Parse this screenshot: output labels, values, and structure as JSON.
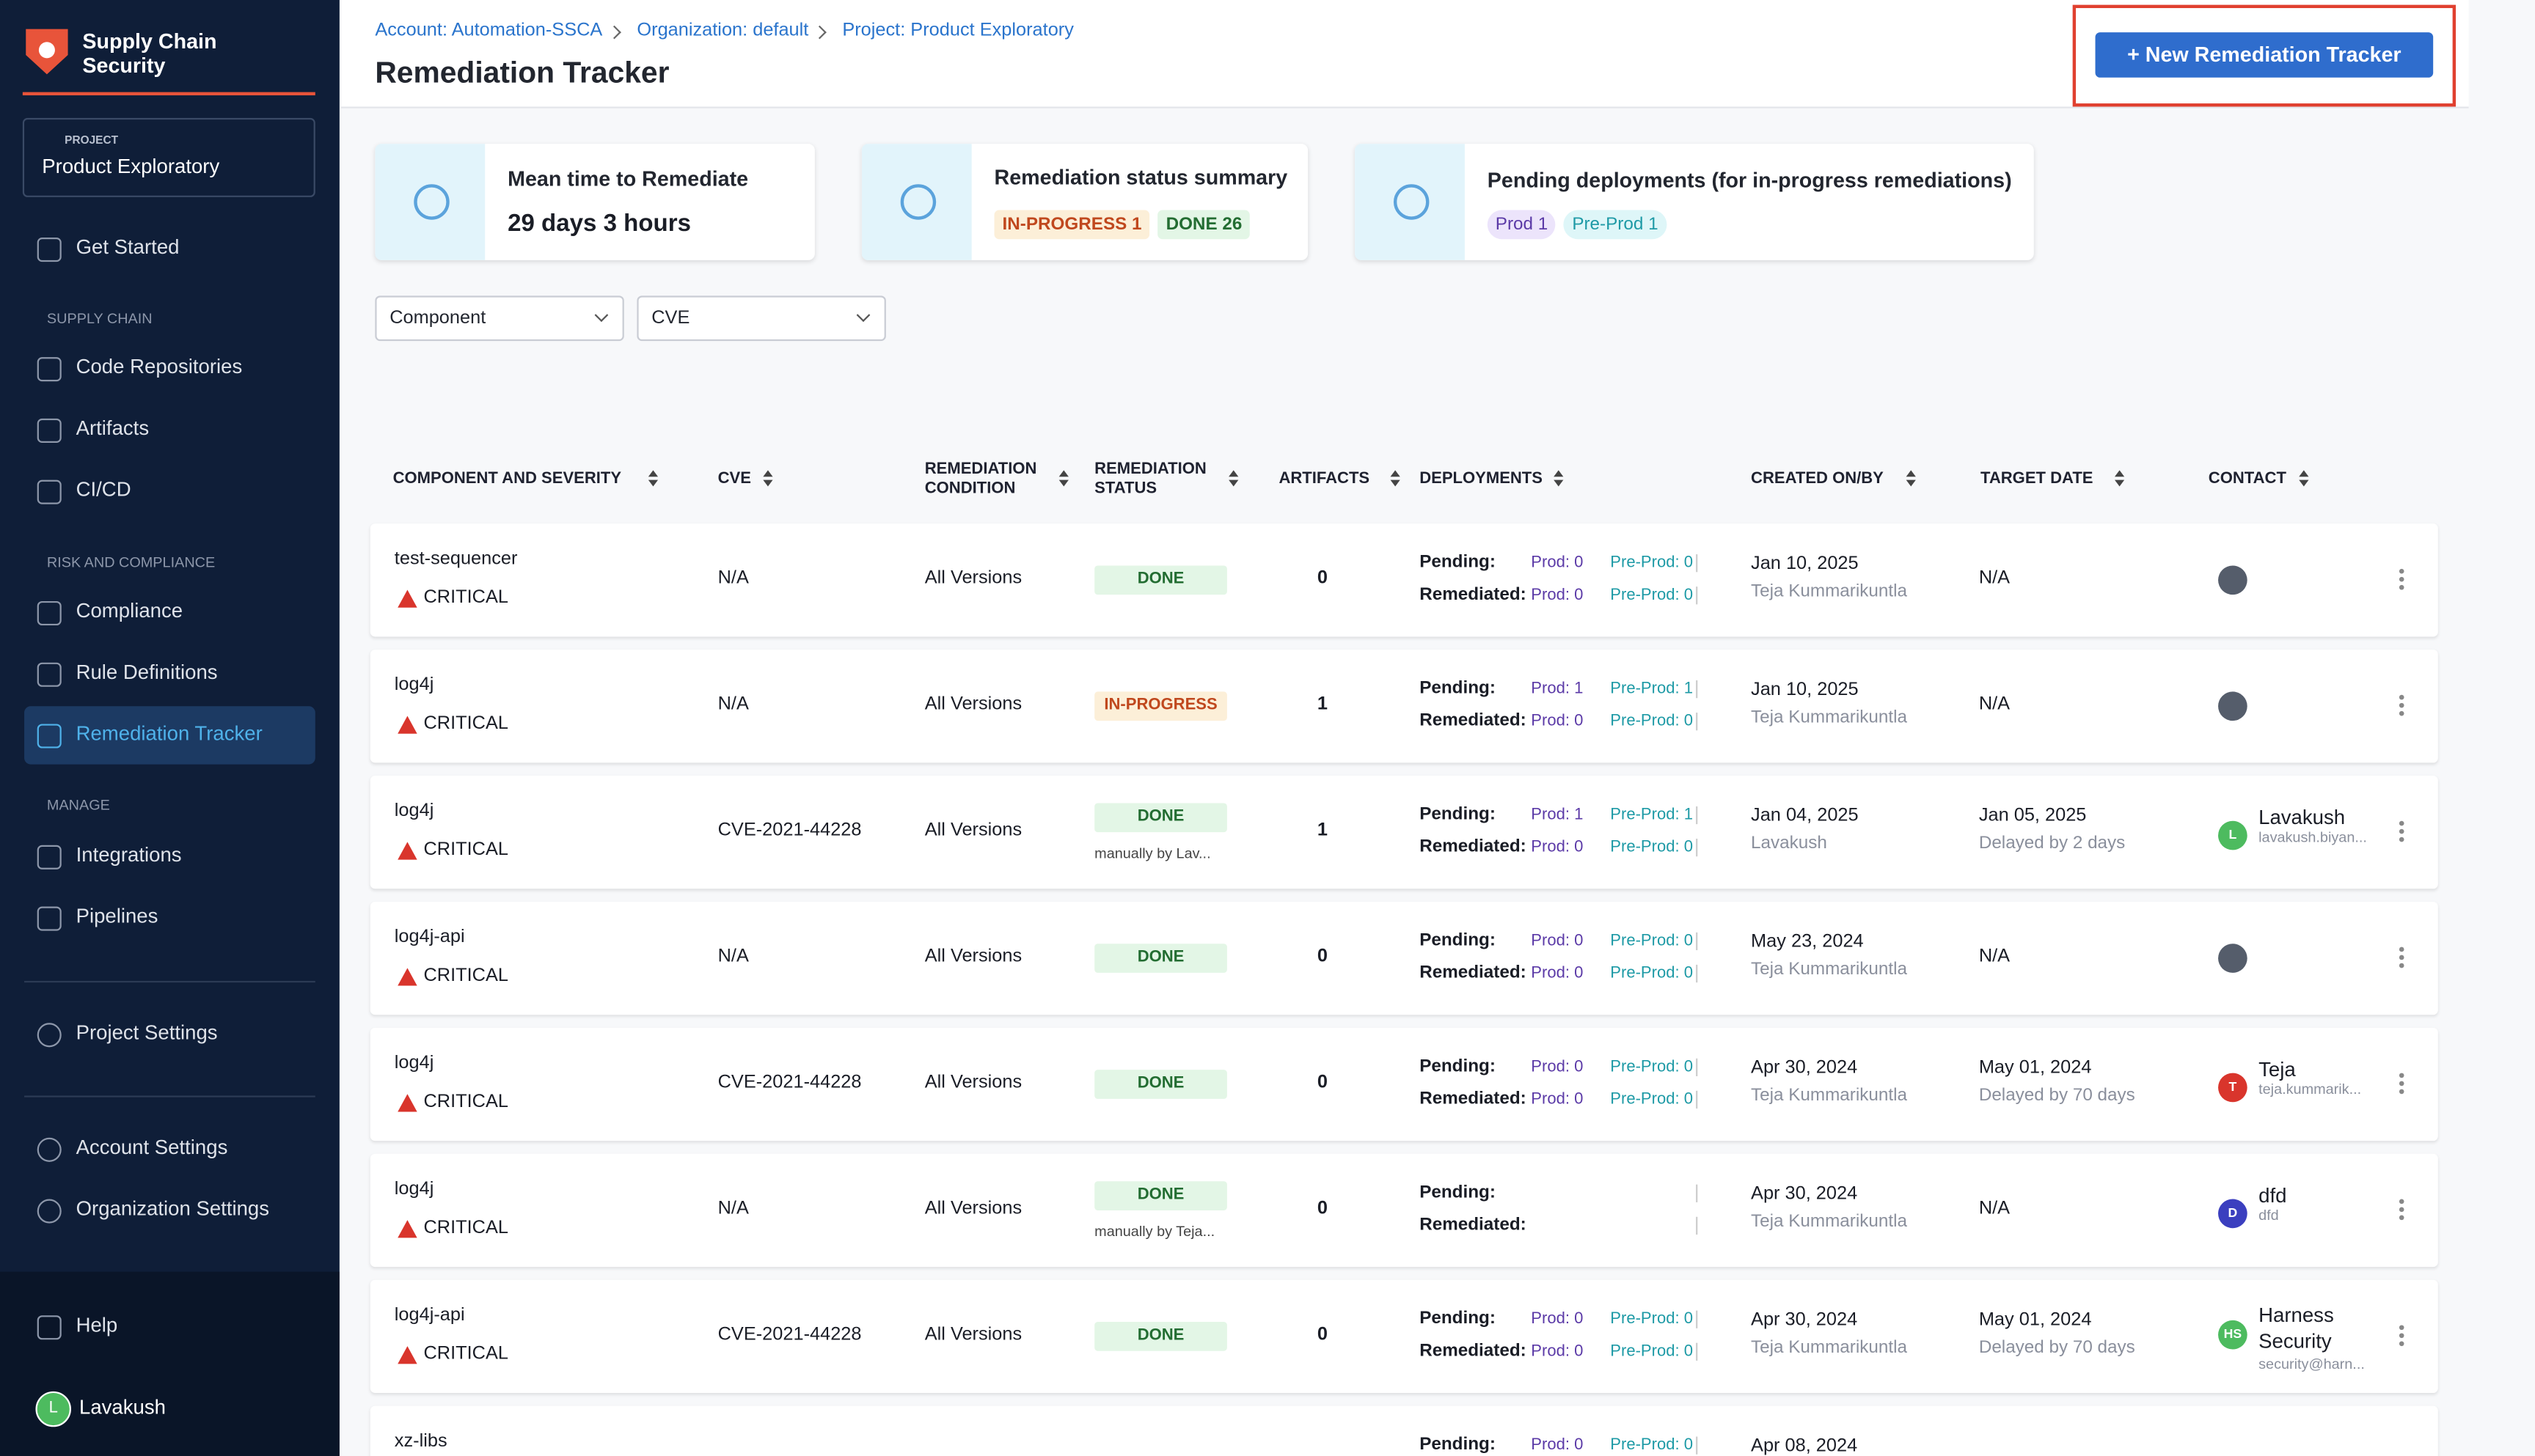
{
  "sidebar": {
    "module": "Supply Chain Security",
    "project_label": "PROJECT",
    "project": "Product Exploratory",
    "groups": [
      {
        "items": [
          {
            "label": "Get Started"
          }
        ]
      },
      {
        "title": "SUPPLY CHAIN",
        "items": [
          {
            "label": "Code Repositories"
          },
          {
            "label": "Artifacts"
          },
          {
            "label": "CI/CD"
          }
        ]
      },
      {
        "title": "RISK AND COMPLIANCE",
        "items": [
          {
            "label": "Compliance"
          },
          {
            "label": "Rule Definitions"
          },
          {
            "label": "Remediation Tracker",
            "active": true
          }
        ]
      },
      {
        "title": "MANAGE",
        "items": [
          {
            "label": "Integrations"
          },
          {
            "label": "Pipelines"
          }
        ]
      }
    ],
    "settings": [
      "Project Settings",
      "Account Settings",
      "Organization Settings"
    ],
    "help": "Help",
    "user": {
      "initial": "L",
      "name": "Lavakush"
    }
  },
  "header": {
    "breadcrumbs": [
      "Account: Automation-SSCA",
      "Organization: default",
      "Project: Product Exploratory"
    ],
    "title": "Remediation Tracker",
    "button": "+ New Remediation Tracker"
  },
  "cards": [
    {
      "title": "Mean time to Remediate",
      "value": "29 days 3 hours"
    },
    {
      "title": "Remediation status summary",
      "badges": [
        {
          "text": "IN-PROGRESS 1",
          "kind": "progress"
        },
        {
          "text": "DONE 26",
          "kind": "done"
        }
      ]
    },
    {
      "title": "Pending deployments (for in-progress remediations)",
      "badges": [
        {
          "text": "Prod 1",
          "kind": "prod"
        },
        {
          "text": "Pre-Prod 1",
          "kind": "preprod"
        }
      ]
    }
  ],
  "filters": [
    "Component",
    "CVE"
  ],
  "table": {
    "columns": [
      "COMPONENT AND SEVERITY",
      "CVE",
      "REMEDIATION CONDITION",
      "REMEDIATION STATUS",
      "ARTIFACTS",
      "DEPLOYMENTS",
      "CREATED ON/BY",
      "TARGET DATE",
      "CONTACT"
    ],
    "labels": {
      "pending": "Pending:",
      "remediated": "Remediated:"
    },
    "rows": [
      {
        "component": "test-sequencer",
        "severity": "CRITICAL",
        "cve": "N/A",
        "condition": "All Versions",
        "status": "DONE",
        "artifacts": 0,
        "pending": [
          "Prod: 0",
          "Pre-Prod: 0"
        ],
        "remediated": [
          "Prod: 0",
          "Pre-Prod: 0"
        ],
        "created": "Jan 10, 2025",
        "created_by": "Teja Kummarikuntla",
        "target": "N/A"
      },
      {
        "component": "log4j",
        "severity": "CRITICAL",
        "cve": "N/A",
        "condition": "All Versions",
        "status": "IN-PROGRESS",
        "artifacts": 1,
        "pending": [
          "Prod: 1",
          "Pre-Prod: 1"
        ],
        "remediated": [
          "Prod: 0",
          "Pre-Prod: 0"
        ],
        "created": "Jan 10, 2025",
        "created_by": "Teja Kummarikuntla",
        "target": "N/A"
      },
      {
        "component": "log4j",
        "severity": "CRITICAL",
        "cve": "CVE-2021-44228",
        "condition": "All Versions",
        "status": "DONE",
        "status_note": "manually by Lav...",
        "artifacts": 1,
        "pending": [
          "Prod: 1",
          "Pre-Prod: 1"
        ],
        "remediated": [
          "Prod: 0",
          "Pre-Prod: 0"
        ],
        "created": "Jan 04, 2025",
        "created_by": "Lavakush",
        "target": "Jan 05, 2025",
        "target_note": "Delayed by 2 days",
        "contact": {
          "initial": "L",
          "color": "#4dbb5f",
          "name": "Lavakush",
          "email": "lavakush.biyan..."
        }
      },
      {
        "component": "log4j-api",
        "severity": "CRITICAL",
        "cve": "N/A",
        "condition": "All Versions",
        "status": "DONE",
        "artifacts": 0,
        "pending": [
          "Prod: 0",
          "Pre-Prod: 0"
        ],
        "remediated": [
          "Prod: 0",
          "Pre-Prod: 0"
        ],
        "created": "May 23, 2024",
        "created_by": "Teja Kummarikuntla",
        "target": "N/A"
      },
      {
        "component": "log4j",
        "severity": "CRITICAL",
        "cve": "CVE-2021-44228",
        "condition": "All Versions",
        "status": "DONE",
        "artifacts": 0,
        "pending": [
          "Prod: 0",
          "Pre-Prod: 0"
        ],
        "remediated": [
          "Prod: 0",
          "Pre-Prod: 0"
        ],
        "created": "Apr 30, 2024",
        "created_by": "Teja Kummarikuntla",
        "target": "May 01, 2024",
        "target_note": "Delayed by 70 days",
        "contact": {
          "initial": "T",
          "color": "#d9352c",
          "name": "Teja",
          "email": "teja.kummarik..."
        }
      },
      {
        "component": "log4j",
        "severity": "CRITICAL",
        "cve": "N/A",
        "condition": "All Versions",
        "status": "DONE",
        "status_note": "manually by Teja...",
        "artifacts": 0,
        "created": "Apr 30, 2024",
        "created_by": "Teja Kummarikuntla",
        "target": "N/A",
        "contact": {
          "initial": "D",
          "color": "#3b3fbf",
          "name": "dfd",
          "email": "dfd"
        }
      },
      {
        "component": "log4j-api",
        "severity": "CRITICAL",
        "cve": "CVE-2021-44228",
        "condition": "All Versions",
        "status": "DONE",
        "artifacts": 0,
        "pending": [
          "Prod: 0",
          "Pre-Prod: 0"
        ],
        "remediated": [
          "Prod: 0",
          "Pre-Prod: 0"
        ],
        "created": "Apr 30, 2024",
        "created_by": "Teja Kummarikuntla",
        "target": "May 01, 2024",
        "target_note": "Delayed by 70 days",
        "contact": {
          "initial": "HS",
          "color": "#4dbb5f",
          "name": "Harness Security",
          "email": "security@harn..."
        }
      },
      {
        "component": "xz-libs",
        "pending": [
          "Prod: 0",
          "Pre-Prod: 0"
        ],
        "created": "Apr 08, 2024"
      }
    ]
  }
}
